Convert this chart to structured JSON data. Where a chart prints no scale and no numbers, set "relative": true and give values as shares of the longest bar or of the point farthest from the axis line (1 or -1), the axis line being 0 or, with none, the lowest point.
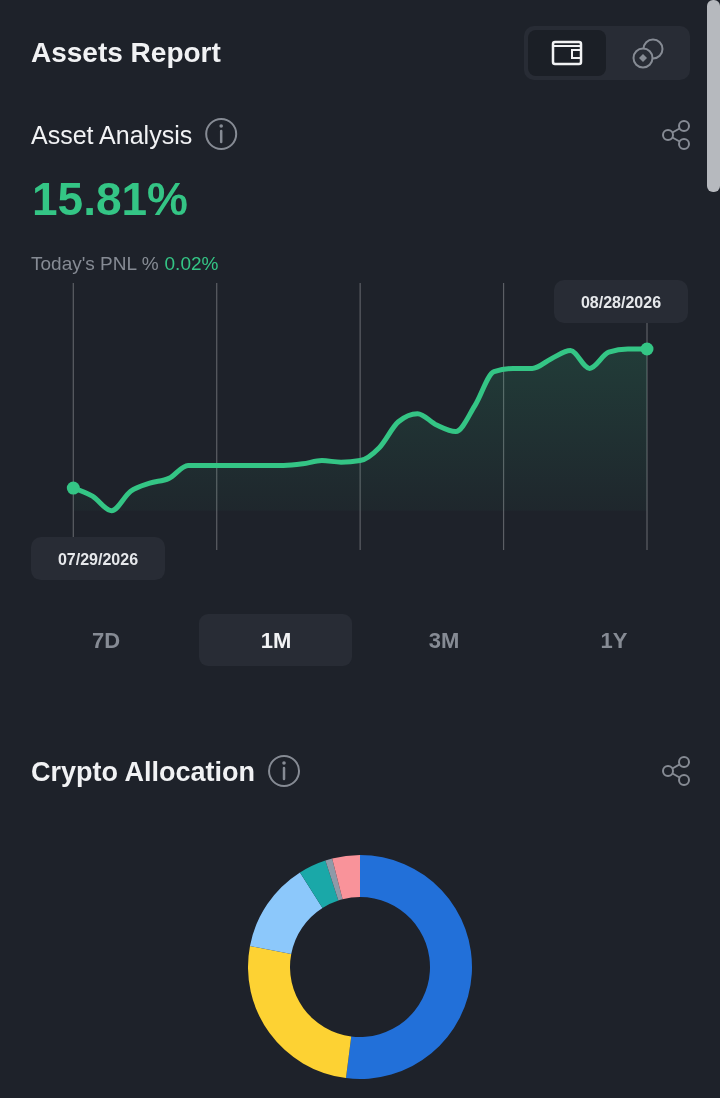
{
  "chart_data": [
    {
      "type": "area",
      "title": "Asset Analysis",
      "subtitle": "15.81%",
      "relative": true,
      "categories": [
        null,
        null,
        null,
        null,
        null,
        null,
        null,
        null,
        null,
        null,
        null,
        null,
        null,
        null,
        null,
        null,
        null,
        null,
        null,
        null,
        null,
        null,
        null,
        null,
        null,
        null,
        null,
        null,
        null,
        null,
        null
      ],
      "series": [
        {
          "color": "#34c585",
          "values": [
            0.14,
            0.09,
            0,
            0.12,
            0.17,
            0.2,
            0.28,
            0.28,
            0.28,
            0.28,
            0.28,
            0.28,
            0.29,
            0.31,
            0.3,
            0.31,
            0.39,
            0.55,
            0.6,
            0.53,
            0.49,
            0.65,
            0.86,
            0.88,
            0.88,
            0.94,
            0.99,
            0.88,
            0.98,
            1,
            1
          ]
        }
      ],
      "grid": "x",
      "annotations": [
        "Assets Report",
        "Today's PNL %",
        "0.02%",
        "7D",
        "1M",
        "3M",
        "1Y",
        "07/29/2026",
        "08/28/2026"
      ]
    },
    {
      "type": "donut",
      "title": "Crypto Allocation",
      "categories": [
        null,
        null,
        null,
        null,
        null,
        null
      ],
      "values": [
        52,
        26,
        13,
        4,
        1,
        4
      ],
      "colors": [
        "#2270d9",
        "#fdd233",
        "#8cc8fb",
        "#1aa8a8",
        "#8e9aa8",
        "#f9939a"
      ]
    }
  ]
}
